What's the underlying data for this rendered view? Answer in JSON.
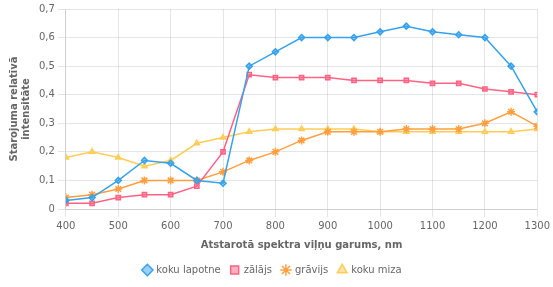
{
  "chart_data": {
    "type": "line",
    "xlabel": "Atstarotā spektra viļņu garums, nm",
    "ylabel": "Starojuma relatīvā\nintensitāte",
    "x": [
      400,
      450,
      500,
      550,
      600,
      650,
      700,
      750,
      800,
      850,
      900,
      950,
      1000,
      1050,
      1100,
      1150,
      1200,
      1250,
      1300
    ],
    "series": [
      {
        "name": "koku lapotne",
        "marker": "diamond",
        "values": [
          0.03,
          0.04,
          0.1,
          0.17,
          0.16,
          0.1,
          0.09,
          0.5,
          0.55,
          0.6,
          0.6,
          0.6,
          0.62,
          0.64,
          0.62,
          0.61,
          0.6,
          0.5,
          0.34
        ]
      },
      {
        "name": "zālājs",
        "marker": "square",
        "values": [
          0.02,
          0.02,
          0.04,
          0.05,
          0.05,
          0.08,
          0.2,
          0.47,
          0.46,
          0.46,
          0.46,
          0.45,
          0.45,
          0.45,
          0.44,
          0.44,
          0.42,
          0.41,
          0.4
        ]
      },
      {
        "name": "grāvijs",
        "marker": "star",
        "values": [
          0.04,
          0.05,
          0.07,
          0.1,
          0.1,
          0.1,
          0.13,
          0.17,
          0.2,
          0.24,
          0.27,
          0.27,
          0.27,
          0.28,
          0.28,
          0.28,
          0.3,
          0.34,
          0.29
        ]
      },
      {
        "name": "koku miza",
        "marker": "triangle",
        "values": [
          0.18,
          0.2,
          0.18,
          0.15,
          0.17,
          0.23,
          0.25,
          0.27,
          0.28,
          0.28,
          0.28,
          0.28,
          0.27,
          0.27,
          0.27,
          0.27,
          0.27,
          0.27,
          0.28
        ]
      }
    ],
    "xlim": [
      400,
      1300
    ],
    "xticks": [
      400,
      500,
      600,
      700,
      800,
      900,
      1000,
      1100,
      1200,
      1300
    ],
    "ylim": [
      0,
      0.7
    ],
    "yticks": [
      0,
      {
        "value": 0.1,
        "label": "0,1"
      },
      {
        "value": 0.2,
        "label": "0,2"
      },
      {
        "value": 0.3,
        "label": "0,3"
      },
      {
        "value": 0.4,
        "label": "0,4"
      },
      {
        "value": 0.5,
        "label": "0,5"
      },
      {
        "value": 0.6,
        "label": "0,6"
      },
      {
        "value": 0.7,
        "label": "0,7"
      }
    ],
    "grid": true,
    "legend": "bottom"
  }
}
